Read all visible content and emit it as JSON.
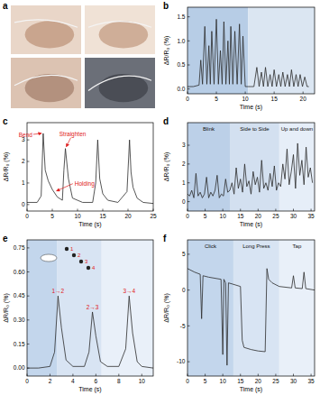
{
  "photo_panel": {
    "title": "a"
  },
  "chart_data": [
    {
      "type": "line",
      "title": "b",
      "x_label": "Time (s)",
      "y_label": "ΔR/R₀ (%)",
      "xlim": [
        0,
        22
      ],
      "xticks": [
        0,
        5,
        10,
        15,
        20
      ],
      "ylim": [
        -0.1,
        1.7
      ],
      "yticks": [
        {
          "value": 0,
          "label": "0.0"
        },
        {
          "value": 0.5,
          "label": "0.5"
        },
        {
          "value": 1,
          "label": "1.0"
        },
        {
          "value": 1.5,
          "label": "1.5"
        }
      ],
      "bands": [
        {
          "from": 0,
          "to": 10.5,
          "color": "#b7cde6"
        },
        {
          "from": 10.5,
          "to": 22,
          "color": "#dbe6f2"
        }
      ],
      "x": [
        0,
        1,
        2,
        2.3,
        2.6,
        3,
        3.35,
        3.7,
        3.95,
        4.2,
        4.6,
        5,
        5.35,
        5.7,
        6,
        6.3,
        6.65,
        7,
        7.25,
        7.5,
        7.85,
        8.2,
        8.6,
        9,
        9.3,
        9.6,
        10,
        10.5,
        11,
        11.5,
        12,
        12.4,
        12.8,
        13.15,
        13.5,
        13.9,
        14.3,
        14.65,
        15,
        15.4,
        15.8,
        16.15,
        16.5,
        16.9,
        17.3,
        17.65,
        18,
        18.4,
        18.8,
        19.15,
        19.5,
        19.9,
        20.3,
        20.7,
        21
      ],
      "series": [
        {
          "color": "#2b2b2b",
          "values": [
            0.05,
            0.05,
            0.08,
            0.6,
            0.1,
            1.3,
            0.1,
            0.9,
            0.1,
            1.2,
            0.1,
            1.45,
            0.1,
            0.8,
            0.1,
            1.4,
            0.1,
            1.0,
            0.1,
            1.3,
            0.1,
            1.2,
            0.1,
            1.35,
            0.1,
            1.1,
            0.05,
            0.05,
            0.05,
            0.05,
            0.45,
            0.05,
            0.35,
            0.05,
            0.45,
            0.05,
            0.3,
            0.05,
            0.4,
            0.05,
            0.3,
            0.05,
            0.35,
            0.05,
            0.3,
            0.05,
            0.4,
            0.05,
            0.3,
            0.05,
            0.3,
            0.05,
            0.25,
            0.05,
            0.05
          ]
        }
      ]
    },
    {
      "type": "line",
      "title": "c",
      "x_label": "Time (s)",
      "y_label": "ΔR/R₀ (%)",
      "xlim": [
        0,
        25
      ],
      "xticks": [
        0,
        5,
        10,
        15,
        20,
        25
      ],
      "ylim": [
        -0.3,
        3.8
      ],
      "yticks": [
        0,
        1,
        2,
        3
      ],
      "annotations": [
        {
          "text": "Bend",
          "x": 3.2,
          "y": 3.3
        },
        {
          "text": "Holding",
          "x": 5.5,
          "y": 0.55
        },
        {
          "text": "Straighten",
          "x": 7.6,
          "y": 2.6
        }
      ],
      "x": [
        0,
        2,
        2.8,
        3.2,
        3.6,
        4.2,
        5,
        6,
        7,
        7.3,
        7.6,
        8.2,
        9,
        11,
        13,
        13.6,
        14,
        14.4,
        15,
        16,
        18,
        19.8,
        20.3,
        20.6,
        21,
        21.8,
        23,
        25
      ],
      "series": [
        {
          "color": "#2b2b2b",
          "values": [
            0.1,
            0.1,
            0.4,
            3.3,
            1.6,
            1.1,
            0.7,
            0.35,
            0.2,
            1.6,
            2.6,
            1.2,
            0.3,
            0.1,
            0.1,
            1.0,
            3.0,
            1.2,
            0.5,
            0.2,
            0.1,
            0.6,
            3.0,
            1.5,
            0.8,
            0.3,
            0.1,
            0.05
          ]
        }
      ]
    },
    {
      "type": "line",
      "title": "d",
      "x_label": "Time (s)",
      "y_label": "ΔR/R₀ (%)",
      "xlim": [
        0,
        36
      ],
      "xticks": [
        0,
        5,
        10,
        15,
        20,
        25,
        30,
        35
      ],
      "ylim": [
        -0.5,
        4.2
      ],
      "yticks": [
        0,
        1,
        2,
        3
      ],
      "bands": [
        {
          "from": 0,
          "to": 12,
          "color": "#bcd0e8",
          "label": "Blink"
        },
        {
          "from": 12,
          "to": 26,
          "color": "#d3e0f0",
          "label": "Side to Side"
        },
        {
          "from": 26,
          "to": 36,
          "color": "#e6eef8",
          "label": "Up and down"
        }
      ],
      "x": [
        0,
        0.6,
        1.2,
        1.8,
        2.4,
        3,
        3.6,
        4.2,
        4.8,
        5.4,
        6,
        6.6,
        7.2,
        7.8,
        8.4,
        9,
        9.6,
        10.2,
        10.8,
        11.4,
        12,
        12.6,
        13.2,
        13.8,
        14.4,
        15,
        15.6,
        16.2,
        16.8,
        17.4,
        18,
        18.6,
        19.2,
        19.8,
        20.4,
        21,
        21.6,
        22.2,
        22.8,
        23.4,
        24,
        24.6,
        25.2,
        25.8,
        26.4,
        27,
        27.6,
        28.2,
        28.8,
        29.4,
        30,
        30.6,
        31.2,
        31.8,
        32.4,
        33,
        33.6,
        34.2,
        34.8,
        35.4
      ],
      "series": [
        {
          "color": "#2b2b2b",
          "values": [
            0.4,
            0.3,
            0.6,
            0.2,
            1.5,
            0.3,
            0.5,
            0.2,
            0.4,
            1.3,
            0.2,
            0.5,
            0.3,
            0.6,
            1.4,
            0.2,
            0.4,
            0.3,
            1.2,
            0.5,
            0.6,
            1.0,
            0.4,
            1.8,
            0.7,
            1.2,
            0.5,
            2.0,
            0.8,
            1.1,
            0.4,
            1.6,
            0.9,
            1.3,
            0.5,
            2.2,
            0.7,
            1.0,
            0.6,
            1.5,
            0.8,
            1.9,
            0.6,
            1.0,
            0.8,
            2.0,
            1.2,
            2.8,
            0.9,
            1.6,
            2.5,
            0.7,
            3.1,
            1.4,
            2.2,
            0.9,
            2.9,
            1.3,
            1.8,
            1.0
          ]
        }
      ]
    },
    {
      "type": "line",
      "title": "e",
      "x_label": "Time (s)",
      "y_label": "ΔR/R₀ (%)",
      "xlim": [
        0,
        11
      ],
      "xticks": [
        0,
        2,
        4,
        6,
        8,
        10
      ],
      "ylim": [
        -0.05,
        0.8
      ],
      "yticks": [
        {
          "value": 0,
          "label": "0.00"
        },
        {
          "value": 0.15,
          "label": "0.15"
        },
        {
          "value": 0.3,
          "label": "0.30"
        },
        {
          "value": 0.45,
          "label": "0.45"
        },
        {
          "value": 0.6,
          "label": "0.60"
        },
        {
          "value": 0.75,
          "label": "0.75"
        }
      ],
      "bands": [
        {
          "from": 0,
          "to": 2.6,
          "color": "#c3d6ec"
        },
        {
          "from": 2.6,
          "to": 6.5,
          "color": "#d8e4f3"
        },
        {
          "from": 6.5,
          "to": 11,
          "color": "#e9f0f9"
        }
      ],
      "annotations": [
        {
          "text": "1→2",
          "x": 2.7,
          "y": 0.45
        },
        {
          "text": "2→3",
          "x": 5.7,
          "y": 0.35
        },
        {
          "text": "3→4",
          "x": 8.9,
          "y": 0.45
        }
      ],
      "inset_labels": [
        "1",
        "2",
        "3",
        "4"
      ],
      "x": [
        0,
        1,
        2,
        2.4,
        2.7,
        3.0,
        3.4,
        4,
        5,
        5.4,
        5.7,
        6.0,
        6.4,
        7,
        8,
        8.6,
        8.9,
        9.2,
        9.6,
        10,
        11
      ],
      "series": [
        {
          "color": "#2b2b2b",
          "values": [
            0,
            0,
            0.01,
            0.1,
            0.45,
            0.25,
            0.05,
            0.01,
            0.01,
            0.1,
            0.35,
            0.2,
            0.04,
            0.01,
            0.01,
            0.12,
            0.45,
            0.22,
            0.04,
            0.01,
            0
          ]
        }
      ]
    },
    {
      "type": "line",
      "title": "f",
      "x_label": "Time (s)",
      "y_label": "ΔR/R₀ (%)",
      "xlim": [
        0,
        36
      ],
      "xticks": [
        0,
        5,
        10,
        15,
        20,
        25,
        30,
        35
      ],
      "ylim": [
        -12,
        7
      ],
      "yticks": [
        -10,
        -5,
        0,
        5
      ],
      "bands": [
        {
          "from": 0,
          "to": 13,
          "color": "#c3d6ec",
          "label": "Click"
        },
        {
          "from": 13,
          "to": 26,
          "color": "#d8e4f3",
          "label": "Long Press"
        },
        {
          "from": 26,
          "to": 36,
          "color": "#e9f0f9",
          "label": "Tap"
        }
      ],
      "x": [
        0,
        2,
        3.6,
        4,
        4.4,
        6,
        9.5,
        10,
        10.3,
        10.8,
        11.2,
        11.6,
        13,
        15,
        15.5,
        16,
        18,
        20,
        22,
        22.5,
        23,
        24,
        26,
        29.5,
        30,
        30.5,
        32.5,
        33,
        33.5,
        36
      ],
      "series": [
        {
          "color": "#2b2b2b",
          "values": [
            3,
            2.5,
            2.2,
            -4,
            2,
            1.8,
            1.5,
            -9,
            1.5,
            1,
            -10.5,
            1,
            0.8,
            0.5,
            -7,
            -8,
            -8.3,
            -8.5,
            -8.6,
            3,
            1.5,
            1,
            0.5,
            0.3,
            2,
            0.3,
            0.2,
            2.5,
            0.2,
            0
          ]
        }
      ]
    }
  ]
}
